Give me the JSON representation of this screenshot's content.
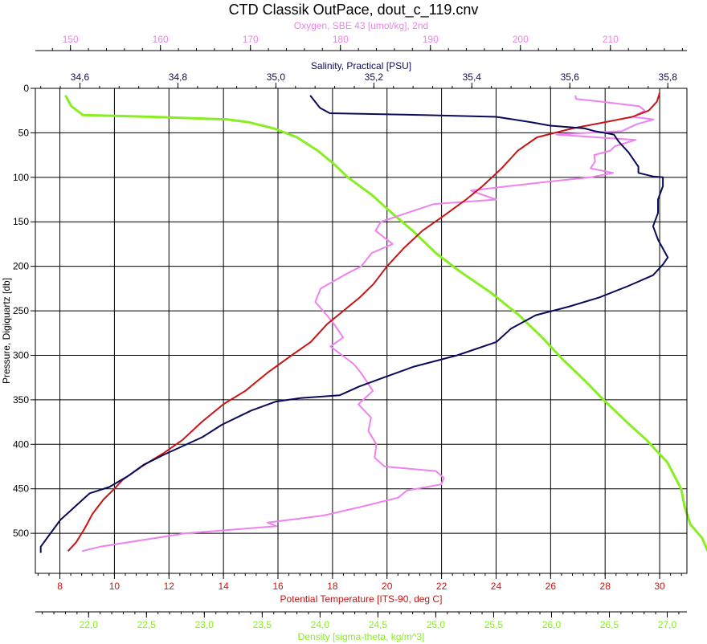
{
  "chart_data": {
    "type": "line",
    "title": "CTD Classik OutPace, dout_c_119.cnv",
    "colors": {
      "temperature": "#c81414",
      "salinity": "#0a0a5a",
      "oxygen": "#ee82ee",
      "density": "#88ee22",
      "axis": "#000000",
      "grid": "#000000"
    },
    "y_axis": {
      "label": "Pressure, Digiquartz [db]",
      "range": [
        0,
        545
      ],
      "reversed": true,
      "ticks": [
        0,
        50,
        100,
        150,
        200,
        250,
        300,
        350,
        400,
        450,
        500
      ],
      "tick_labels": [
        "0",
        "50",
        "100",
        "150",
        "200",
        "250",
        "300",
        "350",
        "400",
        "450",
        "500"
      ]
    },
    "x_axes": [
      {
        "id": "oxygen",
        "label": "Oxygen, SBE 43 [umol/kg], 2nd",
        "position": "top",
        "range": [
          146.1,
          218.5
        ],
        "ticks": [
          150,
          160,
          170,
          180,
          190,
          200,
          210
        ],
        "tick_labels": [
          "150",
          "160",
          "170",
          "180",
          "190",
          "200",
          "210"
        ]
      },
      {
        "id": "salinity",
        "label": "Salinity, Practical [PSU]",
        "position": "top",
        "range": [
          34.509,
          35.839
        ],
        "ticks": [
          34.6,
          34.8,
          35.0,
          35.2,
          35.4,
          35.6,
          35.8
        ],
        "tick_labels": [
          "34,6",
          "34,8",
          "35,0",
          "35,2",
          "35,4",
          "35,6",
          "35,8"
        ]
      },
      {
        "id": "temperature",
        "label": "Potential Temperature [ITS-90, deg C]",
        "position": "bottom",
        "range": [
          7.1,
          31.0
        ],
        "ticks": [
          8,
          10,
          12,
          14,
          16,
          18,
          20,
          22,
          24,
          26,
          28,
          30
        ],
        "tick_labels": [
          "8",
          "10",
          "12",
          "14",
          "16",
          "18",
          "20",
          "22",
          "24",
          "26",
          "28",
          "30"
        ]
      },
      {
        "id": "density",
        "label": "Density [sigma-theta, kg/m^3]",
        "position": "bottom",
        "range": [
          21.54,
          27.17
        ],
        "ticks": [
          22.0,
          22.5,
          23.0,
          23.5,
          24.0,
          24.5,
          25.0,
          25.5,
          26.0,
          26.5,
          27.0
        ],
        "tick_labels": [
          "22,0",
          "22,5",
          "23,0",
          "23,5",
          "24,0",
          "24,5",
          "25,0",
          "25,5",
          "26,0",
          "26,5",
          "27,0"
        ]
      }
    ],
    "series": [
      {
        "name": "Potential Temperature [ITS-90, deg C]",
        "axis": "temperature",
        "color": "#c81414",
        "points": [
          [
            30.0,
            5
          ],
          [
            29.9,
            15
          ],
          [
            29.6,
            25
          ],
          [
            29.0,
            32
          ],
          [
            28.0,
            38
          ],
          [
            26.8,
            45
          ],
          [
            25.5,
            55
          ],
          [
            24.8,
            70
          ],
          [
            24.2,
            90
          ],
          [
            23.5,
            110
          ],
          [
            22.9,
            125
          ],
          [
            22.0,
            145
          ],
          [
            21.3,
            160
          ],
          [
            20.6,
            180
          ],
          [
            20.0,
            200
          ],
          [
            19.5,
            220
          ],
          [
            19.0,
            235
          ],
          [
            18.4,
            250
          ],
          [
            17.8,
            265
          ],
          [
            17.2,
            285
          ],
          [
            16.5,
            300
          ],
          [
            15.6,
            320
          ],
          [
            14.8,
            340
          ],
          [
            14.0,
            355
          ],
          [
            13.2,
            375
          ],
          [
            12.5,
            395
          ],
          [
            11.8,
            410
          ],
          [
            11.0,
            425
          ],
          [
            10.3,
            440
          ],
          [
            10.0,
            450
          ],
          [
            9.6,
            462
          ],
          [
            9.2,
            478
          ],
          [
            8.9,
            495
          ],
          [
            8.6,
            510
          ],
          [
            8.3,
            520
          ]
        ]
      },
      {
        "name": "Salinity, Practical [PSU]",
        "axis": "salinity",
        "color": "#0a0a5a",
        "points": [
          [
            35.07,
            8
          ],
          [
            35.08,
            15
          ],
          [
            35.09,
            22
          ],
          [
            35.11,
            28
          ],
          [
            35.3,
            30
          ],
          [
            35.45,
            32
          ],
          [
            35.52,
            38
          ],
          [
            35.56,
            42
          ],
          [
            35.63,
            45
          ],
          [
            35.65,
            48
          ],
          [
            35.69,
            52
          ],
          [
            35.7,
            60
          ],
          [
            35.72,
            72
          ],
          [
            35.73,
            80
          ],
          [
            35.74,
            88
          ],
          [
            35.74,
            95
          ],
          [
            35.77,
            99
          ],
          [
            35.79,
            100
          ],
          [
            35.79,
            110
          ],
          [
            35.78,
            125
          ],
          [
            35.78,
            140
          ],
          [
            35.77,
            155
          ],
          [
            35.78,
            170
          ],
          [
            35.79,
            180
          ],
          [
            35.8,
            190
          ],
          [
            35.79,
            198
          ],
          [
            35.77,
            210
          ],
          [
            35.72,
            222
          ],
          [
            35.66,
            235
          ],
          [
            35.6,
            245
          ],
          [
            35.53,
            255
          ],
          [
            35.48,
            270
          ],
          [
            35.45,
            285
          ],
          [
            35.37,
            300
          ],
          [
            35.28,
            313
          ],
          [
            35.22,
            325
          ],
          [
            35.17,
            335
          ],
          [
            35.13,
            345
          ],
          [
            35.05,
            348
          ],
          [
            35.0,
            352
          ],
          [
            34.95,
            362
          ],
          [
            34.89,
            378
          ],
          [
            34.85,
            392
          ],
          [
            34.81,
            402
          ],
          [
            34.77,
            412
          ],
          [
            34.73,
            423
          ],
          [
            34.7,
            435
          ],
          [
            34.66,
            448
          ],
          [
            34.62,
            455
          ],
          [
            34.59,
            470
          ],
          [
            34.56,
            485
          ],
          [
            34.54,
            500
          ],
          [
            34.52,
            515
          ],
          [
            34.52,
            522
          ]
        ]
      },
      {
        "name": "Oxygen, SBE 43 [umol/kg], 2nd",
        "axis": "oxygen",
        "color": "#ee82ee",
        "points": [
          [
            206.1,
            8
          ],
          [
            206.2,
            12
          ],
          [
            209.0,
            15
          ],
          [
            213.2,
            20
          ],
          [
            213.8,
            25
          ],
          [
            212.5,
            32
          ],
          [
            214.8,
            35
          ],
          [
            213.0,
            40
          ],
          [
            211.3,
            48
          ],
          [
            207.5,
            50
          ],
          [
            204.0,
            52
          ],
          [
            212.8,
            58
          ],
          [
            210.5,
            65
          ],
          [
            210.0,
            70
          ],
          [
            208.2,
            75
          ],
          [
            208.3,
            82
          ],
          [
            207.8,
            90
          ],
          [
            210.3,
            95
          ],
          [
            207.8,
            100
          ],
          [
            203.0,
            105
          ],
          [
            198.6,
            110
          ],
          [
            194.5,
            115
          ],
          [
            197.3,
            125
          ],
          [
            190.4,
            130
          ],
          [
            187.4,
            140
          ],
          [
            184.5,
            150
          ],
          [
            183.9,
            160
          ],
          [
            185.8,
            175
          ],
          [
            183.5,
            185
          ],
          [
            182.3,
            200
          ],
          [
            180.4,
            210
          ],
          [
            177.8,
            225
          ],
          [
            177.2,
            240
          ],
          [
            178.5,
            255
          ],
          [
            179.3,
            265
          ],
          [
            180.3,
            280
          ],
          [
            178.9,
            290
          ],
          [
            180.2,
            300
          ],
          [
            181.5,
            310
          ],
          [
            182.3,
            320
          ],
          [
            183.6,
            340
          ],
          [
            182.0,
            355
          ],
          [
            183.4,
            370
          ],
          [
            183.1,
            385
          ],
          [
            184.0,
            400
          ],
          [
            183.8,
            415
          ],
          [
            184.9,
            425
          ],
          [
            190.6,
            430
          ],
          [
            191.5,
            438
          ],
          [
            191.2,
            445
          ],
          [
            187.4,
            452
          ],
          [
            186.4,
            460
          ],
          [
            182.4,
            470
          ],
          [
            178.1,
            480
          ],
          [
            171.9,
            488
          ],
          [
            172.9,
            492
          ],
          [
            162.8,
            500
          ],
          [
            153.3,
            515
          ],
          [
            151.3,
            520
          ]
        ]
      },
      {
        "name": "Density [sigma-theta, kg/m^3]",
        "axis": "density",
        "color": "#88ee22",
        "points": [
          [
            21.8,
            8
          ],
          [
            21.85,
            20
          ],
          [
            21.95,
            30
          ],
          [
            22.55,
            32
          ],
          [
            23.2,
            35
          ],
          [
            23.38,
            38
          ],
          [
            23.6,
            45
          ],
          [
            23.8,
            55
          ],
          [
            23.98,
            70
          ],
          [
            24.12,
            85
          ],
          [
            24.24,
            100
          ],
          [
            24.45,
            120
          ],
          [
            24.62,
            140
          ],
          [
            24.8,
            160
          ],
          [
            25.0,
            185
          ],
          [
            25.2,
            205
          ],
          [
            25.48,
            230
          ],
          [
            25.72,
            255
          ],
          [
            25.92,
            280
          ],
          [
            26.1,
            305
          ],
          [
            26.3,
            330
          ],
          [
            26.45,
            350
          ],
          [
            26.65,
            375
          ],
          [
            26.82,
            395
          ],
          [
            27.0,
            420
          ],
          [
            27.08,
            440
          ],
          [
            27.12,
            450
          ],
          [
            27.15,
            470
          ],
          [
            27.2,
            490
          ],
          [
            27.3,
            505
          ],
          [
            27.35,
            520
          ]
        ]
      }
    ]
  }
}
